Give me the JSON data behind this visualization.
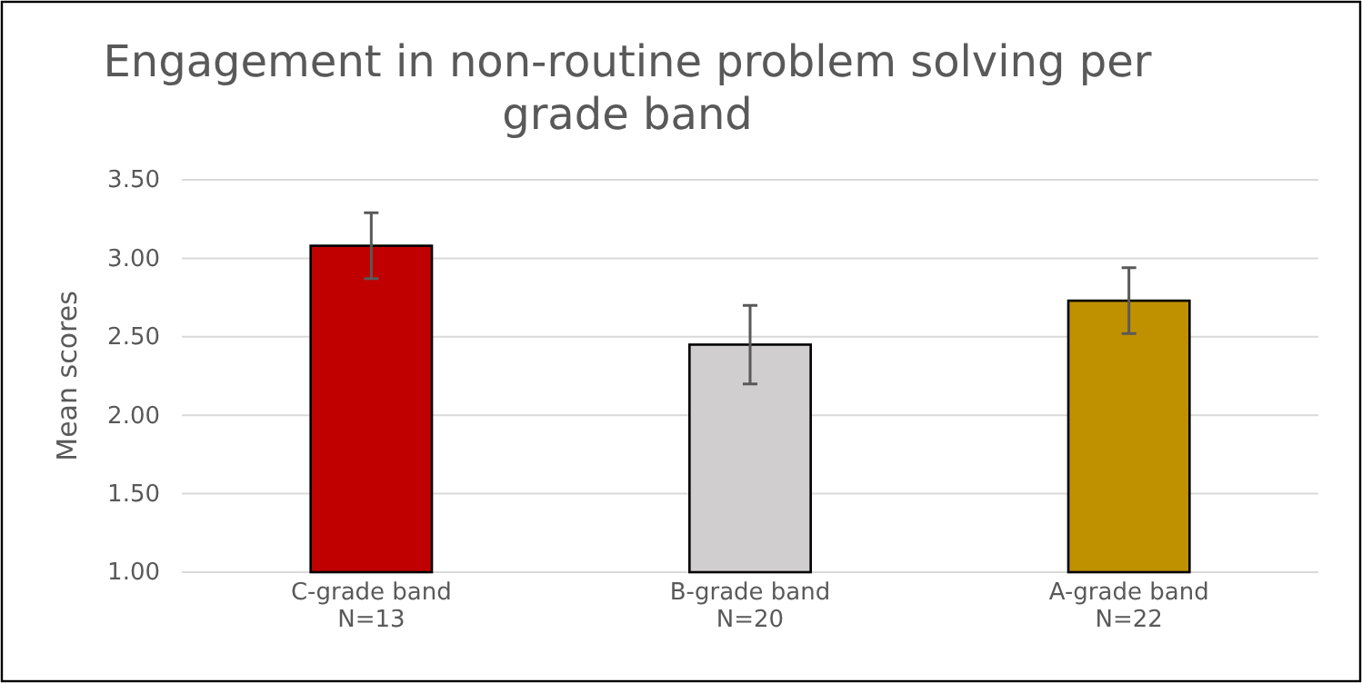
{
  "chart_data": {
    "type": "bar",
    "title": "Engagement in non-routine problem solving per grade band",
    "ylabel": "Mean  scores",
    "categories": [
      "C-grade band\nN=13",
      "B-grade band\nN=20",
      "A-grade band\nN=22"
    ],
    "values": [
      3.08,
      2.45,
      2.73
    ],
    "colors": [
      "#c00000",
      "#d0cece",
      "#bf9000"
    ],
    "errors": [
      0.21,
      0.25,
      0.21
    ],
    "ylim": [
      1,
      3.5
    ],
    "yticks": [
      {
        "value": 1,
        "label": "1.00"
      },
      {
        "value": 1.5,
        "label": "1.50"
      },
      {
        "value": 2,
        "label": "2.00"
      },
      {
        "value": 2.5,
        "label": "2.50"
      },
      {
        "value": 3,
        "label": "3.00"
      },
      {
        "value": 3.5,
        "label": "3.50"
      }
    ],
    "grid": "y"
  }
}
